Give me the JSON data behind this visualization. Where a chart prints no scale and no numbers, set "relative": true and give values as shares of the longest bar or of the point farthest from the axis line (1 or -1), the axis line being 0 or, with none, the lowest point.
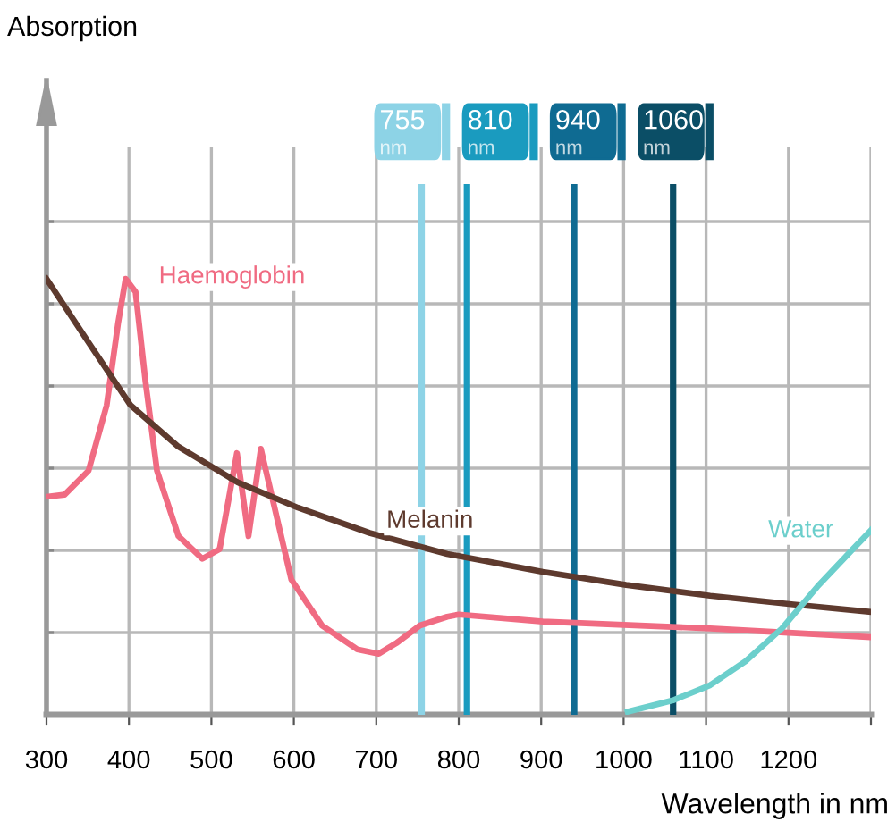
{
  "chart_data": {
    "type": "line",
    "relative": true,
    "annotations": [
      "Absorption"
    ],
    "xlabel": "Wavelength in nm",
    "xlim": [
      300,
      1300
    ],
    "xticks": [
      300,
      400,
      500,
      600,
      700,
      800,
      900,
      1000,
      1100,
      1200,
      {
        "value": 1300,
        "label": null
      }
    ],
    "grid": true,
    "tick_labels": "x",
    "legend": false,
    "marker": "none",
    "line_style": "solid",
    "series": [
      {
        "name": "Haemoglobin",
        "color": "#f06b82",
        "x": [
          300,
          322,
          351,
          373,
          387,
          396,
          408,
          420,
          434,
          460,
          489,
          510,
          531,
          545,
          560,
          576,
          597,
          634,
          677,
          703,
          724,
          753,
          786,
          800,
          902,
          1105,
          1300
        ],
        "values": [
          0.5,
          0.505,
          0.56,
          0.71,
          0.9,
          1.0,
          0.97,
          0.765,
          0.56,
          0.41,
          0.358,
          0.38,
          0.6,
          0.41,
          0.61,
          0.48,
          0.31,
          0.205,
          0.15,
          0.14,
          0.164,
          0.205,
          0.225,
          0.23,
          0.214,
          0.198,
          0.178
        ]
      },
      {
        "name": "Melanin",
        "color": "#5e3a2e",
        "x": [
          300,
          351,
          402,
          460,
          532,
          605,
          692,
          786,
          902,
          1003,
          1105,
          1206,
          1300
        ],
        "values": [
          1.0,
          0.854,
          0.71,
          0.615,
          0.533,
          0.475,
          0.417,
          0.369,
          0.328,
          0.298,
          0.273,
          0.253,
          0.236
        ]
      },
      {
        "name": "Water",
        "color": "#6ccfcc",
        "x": [
          1005,
          1061,
          1105,
          1148,
          1192,
          1235,
          1279,
          1300
        ],
        "values": [
          0.007,
          0.034,
          0.068,
          0.123,
          0.198,
          0.294,
          0.382,
          0.423
        ]
      }
    ],
    "ref_lines": [
      {
        "axis": "x",
        "value": 755,
        "label": "755 nm",
        "color": "#8dd3e6"
      },
      {
        "axis": "x",
        "value": 810,
        "label": "810 nm",
        "color": "#1a9bbf"
      },
      {
        "axis": "x",
        "value": 940,
        "label": "940 nm",
        "color": "#0f6b92"
      },
      {
        "axis": "x",
        "value": 1060,
        "label": "1060 nm",
        "color": "#0b4e66"
      }
    ]
  }
}
